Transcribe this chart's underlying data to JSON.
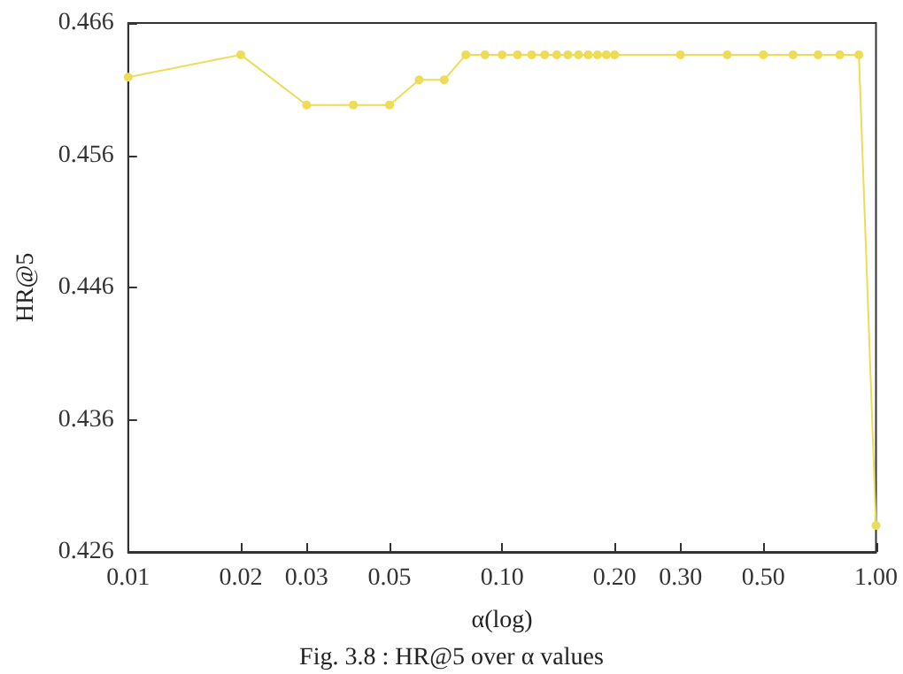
{
  "chart_data": {
    "type": "line",
    "xlabel": "α(log)",
    "ylabel": "HR@5",
    "annotations": [
      "Fig. 3.8 : HR@5 over α values"
    ],
    "x": [
      0.01,
      0.02,
      0.03,
      0.04,
      0.05,
      0.06,
      0.07,
      0.08,
      0.09,
      0.1,
      0.11,
      0.12,
      0.13,
      0.14,
      0.15,
      0.16,
      0.17,
      0.18,
      0.19,
      0.2,
      0.3,
      0.4,
      0.5,
      0.6,
      0.7,
      0.8,
      0.9,
      1.0
    ],
    "series": [
      {
        "color": "#eddc55",
        "values": [
          0.4619,
          0.4636,
          0.4598,
          0.4598,
          0.4598,
          0.4617,
          0.4617,
          0.4636,
          0.4636,
          0.4636,
          0.4636,
          0.4636,
          0.4636,
          0.4636,
          0.4636,
          0.4636,
          0.4636,
          0.4636,
          0.4636,
          0.4636,
          0.4636,
          0.4636,
          0.4636,
          0.4636,
          0.4636,
          0.4636,
          0.4636,
          0.428
        ]
      }
    ],
    "log": "x",
    "xlim": [
      0.01,
      1.0
    ],
    "xticks": [
      0.01,
      0.02,
      0.03,
      0.05,
      {
        "value": 0.1,
        "label": "0.10"
      },
      {
        "value": 0.2,
        "label": "0.20"
      },
      {
        "value": 0.3,
        "label": "0.30"
      },
      {
        "value": 0.5,
        "label": "0.50"
      },
      {
        "value": 1.0,
        "label": "1.00"
      }
    ],
    "ylim": [
      0.426,
      0.466
    ],
    "yticks": [
      0.426,
      0.436,
      0.446,
      0.456,
      0.466
    ],
    "marker": "circle",
    "line_style": "solid"
  }
}
